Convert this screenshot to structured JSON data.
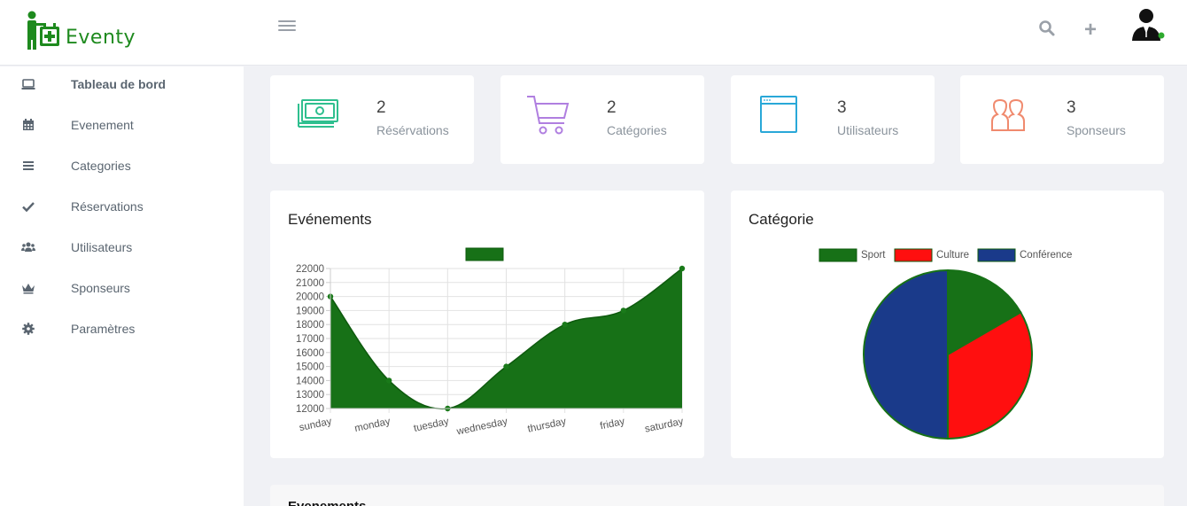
{
  "brand": {
    "name": "Eventy",
    "logo_icon": "eventy-logo-icon"
  },
  "topbar": {
    "menu_icon": "hamburger-icon",
    "search_icon": "search-icon",
    "add_icon": "plus-icon",
    "add_glyph": "+",
    "avatar_icon": "user-avatar-icon",
    "online_status": "#2eaa2e"
  },
  "sidebar": {
    "items": [
      {
        "label": "Tableau de bord",
        "icon": "laptop-icon",
        "active": true
      },
      {
        "label": "Evenement",
        "icon": "calendar-icon"
      },
      {
        "label": "Categories",
        "icon": "list-icon"
      },
      {
        "label": "Réservations",
        "icon": "check-icon"
      },
      {
        "label": "Utilisateurs",
        "icon": "users-icon"
      },
      {
        "label": "Sponseurs",
        "icon": "crown-icon"
      },
      {
        "label": "Paramètres",
        "icon": "gear-icon"
      }
    ]
  },
  "stats": [
    {
      "count": "2",
      "label": "Résérvations",
      "icon": "money-icon",
      "color": "#2fbf8f"
    },
    {
      "count": "2",
      "label": "Catégories",
      "icon": "cart-icon",
      "color": "#b07fe0"
    },
    {
      "count": "3",
      "label": "Utilisateurs",
      "icon": "browser-window-icon",
      "color": "#29a8d8"
    },
    {
      "count": "3",
      "label": "Sponseurs",
      "icon": "people-icon",
      "color": "#f08a6e"
    }
  ],
  "events_panel": {
    "title": "Evénements"
  },
  "category_panel": {
    "title": "Catégorie"
  },
  "bottom_panel": {
    "title": "Evenements"
  },
  "chart_data": [
    {
      "type": "area",
      "title": "",
      "categories": [
        "sunday",
        "monday",
        "tuesday",
        "wednesday",
        "thursday",
        "friday",
        "saturday"
      ],
      "series": [
        {
          "values": [
            20000,
            14000,
            12000,
            15000,
            18000,
            19000,
            22000
          ],
          "color": "#177117"
        }
      ],
      "ylim": [
        12000,
        22000
      ],
      "yticks": [
        "22000",
        "21000",
        "20000",
        "19000",
        "18000",
        "17000",
        "16000",
        "15000",
        "14000",
        "13000",
        "12000"
      ],
      "grid": true,
      "legend": "top"
    },
    {
      "type": "pie",
      "title": "",
      "categories": [
        "Sport",
        "Culture",
        "Conférence"
      ],
      "values": [
        1,
        2,
        3
      ],
      "colors": [
        "#177117",
        "#ff0f0f",
        "#1a3a8a"
      ],
      "legend": "top"
    }
  ]
}
